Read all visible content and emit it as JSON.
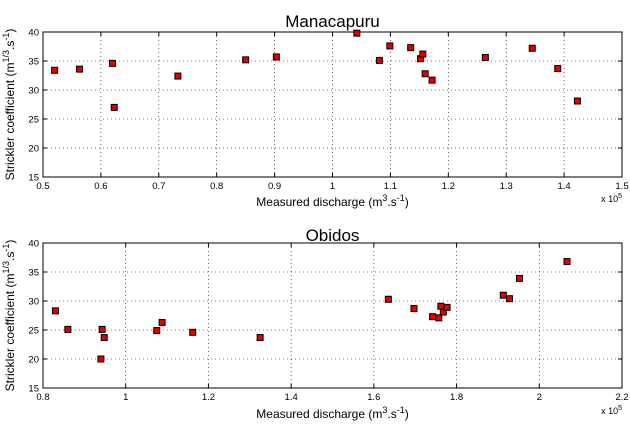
{
  "chart_data": [
    {
      "type": "scatter",
      "title": "Manacapuru",
      "xlabel": "Measured discharge (m3.s-1)",
      "xlabel_parts": {
        "base": "Measured discharge (m",
        "sup1": "3",
        "mid": ".s",
        "sup2": "-1",
        "end": ")"
      },
      "ylabel": "Strickler coefficient (m1/3.s-1)",
      "ylabel_parts": {
        "base": "Strickler coefficient (m",
        "sup1": "1/3",
        "mid": ".s",
        "sup2": "-1",
        "end": ")"
      },
      "x_multiplier": {
        "base": "x 10",
        "exp": "5"
      },
      "xlim": [
        0.5,
        1.5
      ],
      "ylim": [
        15,
        40
      ],
      "xticks": [
        0.5,
        0.6,
        0.7,
        0.8,
        0.9,
        1,
        1.1,
        1.2,
        1.3,
        1.4,
        1.5
      ],
      "xtick_labels": [
        "0.5",
        "0.6",
        "0.7",
        "0.8",
        "0.9",
        "1",
        "1.1",
        "1.2",
        "1.3",
        "1.4",
        "1.5"
      ],
      "yticks": [
        15,
        20,
        25,
        30,
        35,
        40
      ],
      "ytick_labels": [
        "15",
        "20",
        "25",
        "30",
        "35",
        "40"
      ],
      "grid": true,
      "marker_color": "#e00000",
      "points": [
        {
          "x": 0.52,
          "y": 33.4
        },
        {
          "x": 0.563,
          "y": 33.6
        },
        {
          "x": 0.62,
          "y": 34.6
        },
        {
          "x": 0.623,
          "y": 27.0
        },
        {
          "x": 0.733,
          "y": 32.4
        },
        {
          "x": 0.85,
          "y": 35.2
        },
        {
          "x": 0.903,
          "y": 35.7
        },
        {
          "x": 1.042,
          "y": 39.8
        },
        {
          "x": 1.081,
          "y": 35.1
        },
        {
          "x": 1.099,
          "y": 37.6
        },
        {
          "x": 1.135,
          "y": 37.3
        },
        {
          "x": 1.152,
          "y": 35.4
        },
        {
          "x": 1.156,
          "y": 36.2
        },
        {
          "x": 1.16,
          "y": 32.8
        },
        {
          "x": 1.172,
          "y": 31.7
        },
        {
          "x": 1.264,
          "y": 35.6
        },
        {
          "x": 1.345,
          "y": 37.2
        },
        {
          "x": 1.389,
          "y": 33.7
        },
        {
          "x": 1.423,
          "y": 28.1
        }
      ]
    },
    {
      "type": "scatter",
      "title": "Obidos",
      "xlabel": "Measured discharge (m3.s-1)",
      "xlabel_parts": {
        "base": "Measured discharge (m",
        "sup1": "3",
        "mid": ".s",
        "sup2": "-1",
        "end": ")"
      },
      "ylabel": "Strickler coefficient (m1/3.s-1)",
      "ylabel_parts": {
        "base": "Strickler coefficient (m",
        "sup1": "1/3",
        "mid": ".s",
        "sup2": "-1",
        "end": ")"
      },
      "x_multiplier": {
        "base": "x 10",
        "exp": "5"
      },
      "xlim": [
        0.8,
        2.2
      ],
      "ylim": [
        15,
        40
      ],
      "xticks": [
        0.8,
        1,
        1.2,
        1.4,
        1.6,
        1.8,
        2,
        2.2
      ],
      "xtick_labels": [
        "0.8",
        "1",
        "1.2",
        "1.4",
        "1.6",
        "1.8",
        "2",
        "2.2"
      ],
      "yticks": [
        15,
        20,
        25,
        30,
        35,
        40
      ],
      "ytick_labels": [
        "15",
        "20",
        "25",
        "30",
        "35",
        "40"
      ],
      "grid": true,
      "marker_color": "#e00000",
      "points": [
        {
          "x": 0.83,
          "y": 28.3
        },
        {
          "x": 0.86,
          "y": 25.1
        },
        {
          "x": 0.94,
          "y": 20.0
        },
        {
          "x": 0.943,
          "y": 25.1
        },
        {
          "x": 0.948,
          "y": 23.7
        },
        {
          "x": 1.075,
          "y": 24.9
        },
        {
          "x": 1.088,
          "y": 26.3
        },
        {
          "x": 1.162,
          "y": 24.6
        },
        {
          "x": 1.325,
          "y": 23.7
        },
        {
          "x": 1.635,
          "y": 30.3
        },
        {
          "x": 1.697,
          "y": 28.7
        },
        {
          "x": 1.742,
          "y": 27.3
        },
        {
          "x": 1.757,
          "y": 27.1
        },
        {
          "x": 1.762,
          "y": 29.1
        },
        {
          "x": 1.768,
          "y": 28.1
        },
        {
          "x": 1.777,
          "y": 28.9
        },
        {
          "x": 1.913,
          "y": 31.0
        },
        {
          "x": 1.928,
          "y": 30.4
        },
        {
          "x": 1.952,
          "y": 33.9
        },
        {
          "x": 2.067,
          "y": 36.8
        }
      ]
    }
  ]
}
